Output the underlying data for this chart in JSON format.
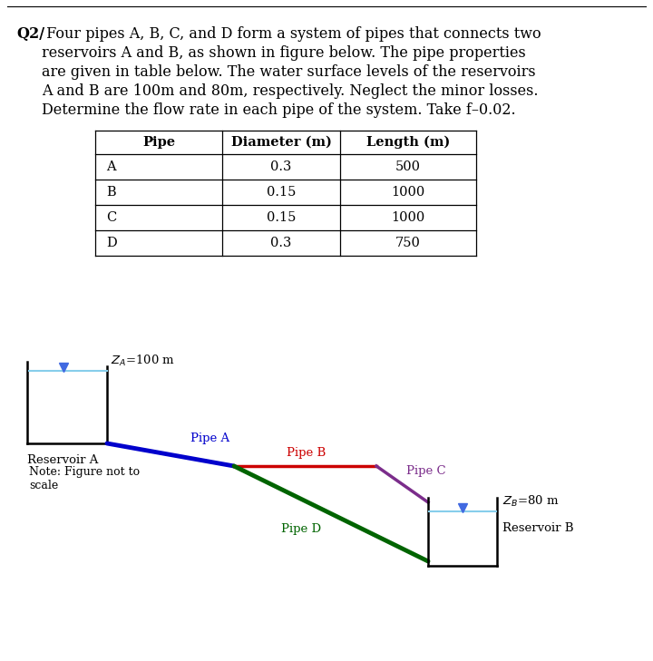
{
  "table_headers": [
    "Pipe",
    "Diameter (m)",
    "Length (m)"
  ],
  "table_data": [
    [
      "A",
      "0.3",
      "500"
    ],
    [
      "B",
      "0.15",
      "1000"
    ],
    [
      "C",
      "0.15",
      "1000"
    ],
    [
      "D",
      "0.3",
      "750"
    ]
  ],
  "pipe_colors": {
    "A": "#0000CC",
    "B": "#CC0000",
    "C": "#7B2D8B",
    "D": "#006400"
  },
  "background_color": "#FFFFFF",
  "text_lines": [
    [
      "Q2/",
      " Four pipes A, B, C, and D form a system of pipes that connects two"
    ],
    [
      "",
      "reservoirs A and B, as shown in figure below. The pipe properties"
    ],
    [
      "",
      "are given in table below. The water surface levels of the reservoirs"
    ],
    [
      "",
      "A and B are 100m and 80m, respectively. Neglect the minor losses."
    ],
    [
      "",
      "Determine the flow rate in each pipe of the system. Take f–0.02."
    ]
  ],
  "note_text": "Note: Figure not to\nscale"
}
